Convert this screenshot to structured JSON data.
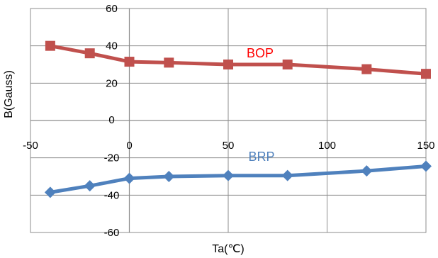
{
  "chart_data": {
    "type": "line",
    "title": "",
    "xlabel": "Ta(℃)",
    "ylabel": "B(Gauss)",
    "xlim": [
      -50,
      150
    ],
    "ylim": [
      -60,
      60
    ],
    "x_ticks": [
      "-50",
      "0",
      "50",
      "100",
      "150"
    ],
    "y_ticks": [
      "60",
      "40",
      "20",
      "0",
      "-20",
      "-40",
      "-60"
    ],
    "grid": true,
    "series": [
      {
        "name": "BOP",
        "color": "#C0504D",
        "marker": "square",
        "x": [
          -40,
          -20,
          0,
          20,
          50,
          80,
          120,
          150
        ],
        "y": [
          40,
          36,
          31.5,
          31,
          30,
          30,
          27.5,
          25
        ]
      },
      {
        "name": "BRP",
        "color": "#4F81BD",
        "marker": "diamond",
        "x": [
          -40,
          -20,
          0,
          20,
          50,
          80,
          120,
          150
        ],
        "y": [
          -38.5,
          -35,
          -31,
          -30,
          -29.5,
          -29.5,
          -27,
          -24.5
        ]
      }
    ]
  }
}
